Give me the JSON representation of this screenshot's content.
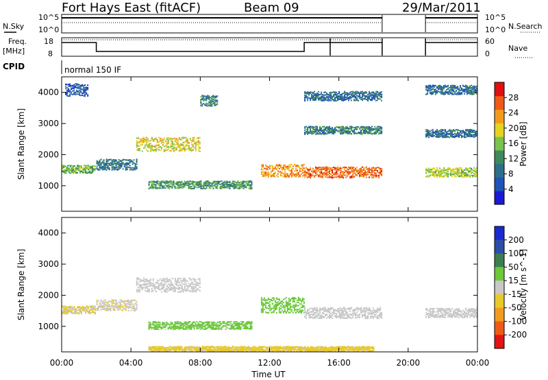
{
  "header": {
    "radar": "Fort Hays East (fitACF)",
    "beam": "Beam 09",
    "date": "29/Mar/2011"
  },
  "noise_panel": {
    "left_label": "N.Sky",
    "right_label": "N.Search",
    "y_ticks": [
      "10^5",
      "10^0"
    ]
  },
  "freq_panel": {
    "left_label_1": "Freq.",
    "left_label_2": "[MHz]",
    "right_label": "Nave",
    "left_ticks": [
      "18",
      "8"
    ],
    "right_ticks": [
      "60",
      "0"
    ]
  },
  "cpid_panel": {
    "label": "CPID",
    "text": "normal 150 IF"
  },
  "colors": {
    "power_scale": [
      "#1a1ad6",
      "#1f54b8",
      "#2d6e8c",
      "#3e8a5c",
      "#79c44c",
      "#e6d321",
      "#f39a1c",
      "#f05a16",
      "#e01010"
    ],
    "velocity_scale": [
      "#1a2ad0",
      "#2c4ea8",
      "#3b7e50",
      "#6cc93a",
      "#c8c8c8",
      "#e8c92a",
      "#f29b1d",
      "#ee5a16",
      "#e21313"
    ],
    "axis": "#000000"
  },
  "chart_data": [
    {
      "type": "heatmap",
      "name": "Power",
      "ylabel": "Slant Range [km]",
      "xlabel": "Time UT",
      "x_ticks": [
        "00:00",
        "04:00",
        "08:00",
        "12:00",
        "16:00",
        "20:00",
        "00:00"
      ],
      "y_ticks": [
        "1000",
        "2000",
        "3000",
        "4000"
      ],
      "xlim": [
        0,
        24
      ],
      "ylim": [
        180,
        4500
      ],
      "colorbar": {
        "label": "Power [dB]",
        "ticks": [
          "4",
          "8",
          "12",
          "16",
          "20",
          "24",
          "28"
        ],
        "range": [
          0,
          30
        ]
      },
      "features": [
        {
          "t_start": 0.0,
          "t_end": 1.9,
          "range_center": 1550,
          "range_width": 250,
          "value": 14
        },
        {
          "t_start": 0.2,
          "t_end": 1.5,
          "range_center": 4100,
          "range_width": 400,
          "value": 6
        },
        {
          "t_start": 2.0,
          "t_end": 4.3,
          "range_center": 1700,
          "range_width": 350,
          "value": 9
        },
        {
          "t_start": 4.3,
          "t_end": 8.0,
          "range_center": 2350,
          "range_width": 450,
          "value": 18
        },
        {
          "t_start": 5.0,
          "t_end": 11.0,
          "range_center": 1050,
          "range_width": 250,
          "value": 12
        },
        {
          "t_start": 8.0,
          "t_end": 9.0,
          "range_center": 3750,
          "range_width": 350,
          "value": 10
        },
        {
          "t_start": 11.5,
          "t_end": 14.0,
          "range_center": 1500,
          "range_width": 400,
          "value": 22
        },
        {
          "t_start": 14.0,
          "t_end": 18.5,
          "range_center": 1450,
          "range_width": 350,
          "value": 24
        },
        {
          "t_start": 14.0,
          "t_end": 18.5,
          "range_center": 2800,
          "range_width": 250,
          "value": 10
        },
        {
          "t_start": 14.0,
          "t_end": 18.5,
          "range_center": 3900,
          "range_width": 300,
          "value": 8
        },
        {
          "t_start": 21.0,
          "t_end": 24.0,
          "range_center": 1450,
          "range_width": 300,
          "value": 16
        },
        {
          "t_start": 21.0,
          "t_end": 24.0,
          "range_center": 2700,
          "range_width": 250,
          "value": 8
        },
        {
          "t_start": 21.0,
          "t_end": 24.0,
          "range_center": 4100,
          "range_width": 300,
          "value": 8
        }
      ]
    },
    {
      "type": "heatmap",
      "name": "Velocity",
      "ylabel": "Slant Range [km]",
      "xlabel": "Time UT",
      "x_ticks": [
        "00:00",
        "04:00",
        "08:00",
        "12:00",
        "16:00",
        "20:00",
        "00:00"
      ],
      "y_ticks": [
        "1000",
        "2000",
        "3000",
        "4000"
      ],
      "xlim": [
        0,
        24
      ],
      "ylim": [
        180,
        4500
      ],
      "colorbar": {
        "label": "Velocity [m s^-1]",
        "ticks": [
          "200",
          "100",
          "50",
          "15",
          "-15",
          "-50",
          "-100",
          "-200"
        ],
        "range": [
          -250,
          250
        ]
      },
      "features": [
        {
          "t_start": 0.0,
          "t_end": 1.9,
          "range_center": 1550,
          "range_width": 250,
          "value": -30
        },
        {
          "t_start": 2.0,
          "t_end": 4.3,
          "range_center": 1700,
          "range_width": 350,
          "value": -20
        },
        {
          "t_start": 4.3,
          "t_end": 8.0,
          "range_center": 2350,
          "range_width": 450,
          "value": 0
        },
        {
          "t_start": 5.0,
          "t_end": 11.0,
          "range_center": 1050,
          "range_width": 250,
          "value": 40
        },
        {
          "t_start": 11.5,
          "t_end": 14.0,
          "range_center": 1700,
          "range_width": 500,
          "value": 45
        },
        {
          "t_start": 14.0,
          "t_end": 18.5,
          "range_center": 1450,
          "range_width": 350,
          "value": 0
        },
        {
          "t_start": 21.0,
          "t_end": 24.0,
          "range_center": 1450,
          "range_width": 300,
          "value": 0
        },
        {
          "t_start": 5.0,
          "t_end": 18.0,
          "range_center": 300,
          "range_width": 150,
          "value": -40
        }
      ]
    }
  ]
}
